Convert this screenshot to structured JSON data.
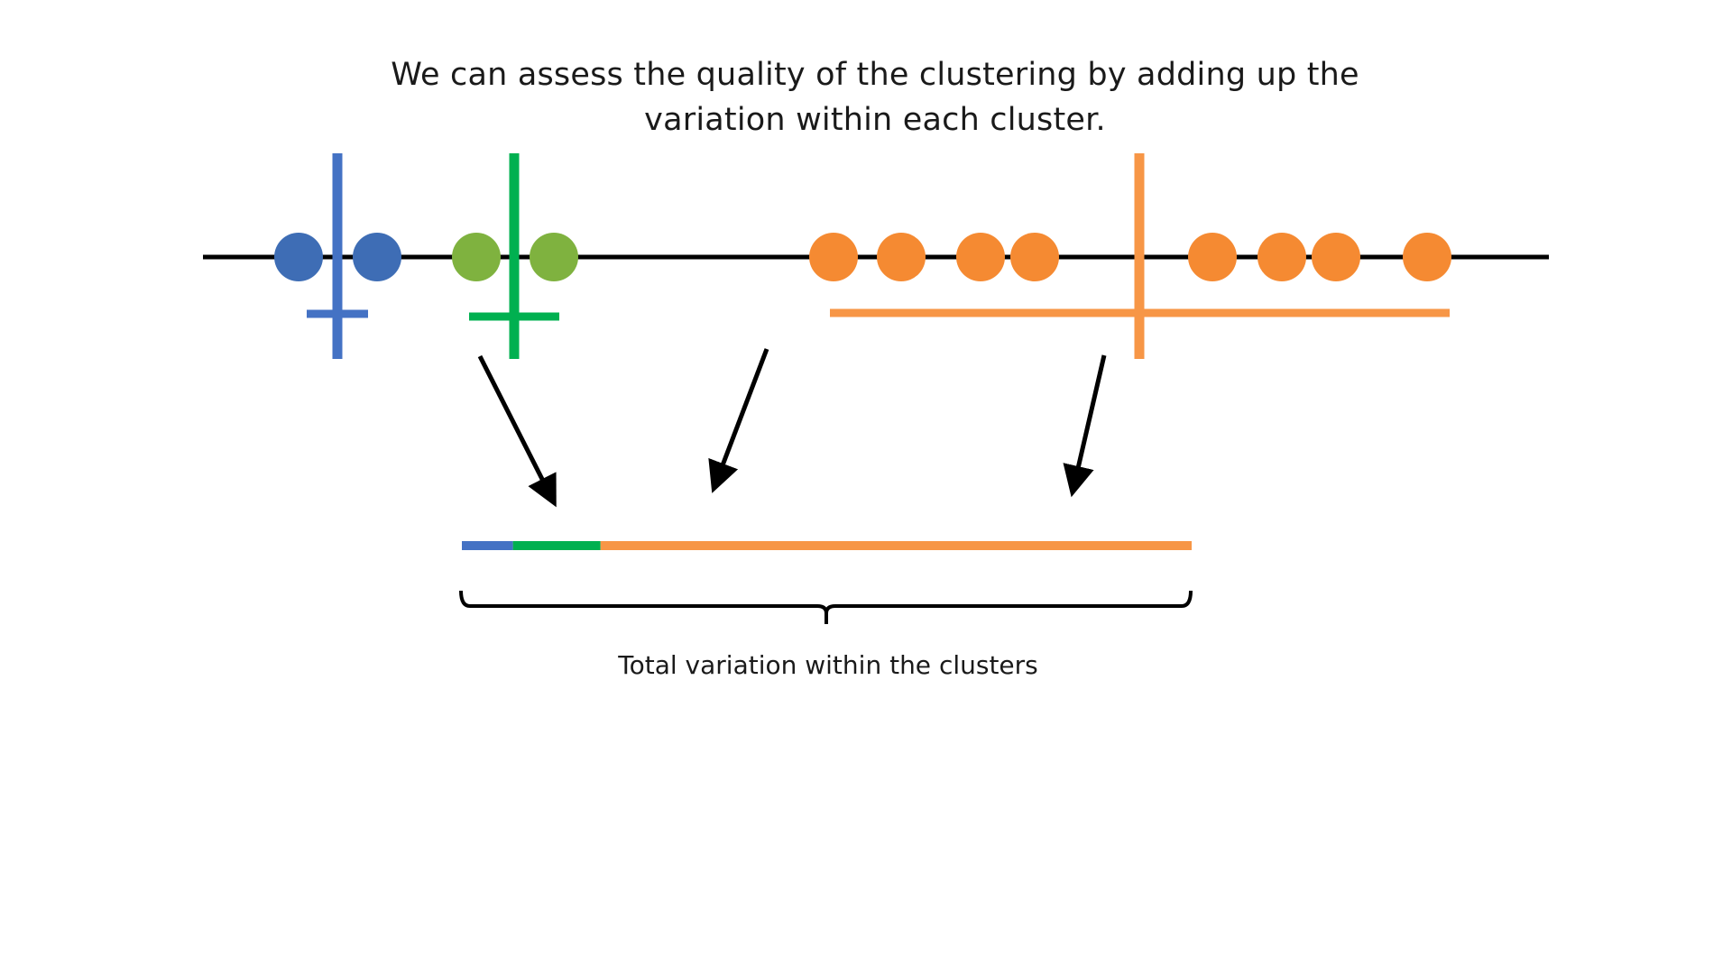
{
  "title": {
    "line1": "We can assess the quality of the clustering by adding up the",
    "line2": "variation within each cluster."
  },
  "caption": "Total variation within the clusters",
  "colors": {
    "blue": "#4472c4",
    "blue_point": "#3e6db5",
    "green": "#00b050",
    "green_point": "#7fb23f",
    "orange": "#f79646",
    "orange_point": "#f58a32",
    "line": "#000000"
  },
  "clusters": [
    {
      "name": "blue",
      "points": [
        331,
        418
      ],
      "center": 374,
      "spread": [
        340,
        408
      ]
    },
    {
      "name": "green",
      "points": [
        528,
        614
      ],
      "center": 570,
      "spread": [
        520,
        620
      ]
    },
    {
      "name": "orange",
      "points": [
        924,
        999,
        1087,
        1147,
        1344,
        1421,
        1481,
        1582
      ],
      "center": 1263,
      "spread": [
        920,
        1607
      ]
    }
  ],
  "summary_bar": {
    "segments": [
      {
        "cluster": "blue",
        "fraction": 0.07
      },
      {
        "cluster": "green",
        "fraction": 0.12
      },
      {
        "cluster": "orange",
        "fraction": 0.81
      }
    ]
  }
}
